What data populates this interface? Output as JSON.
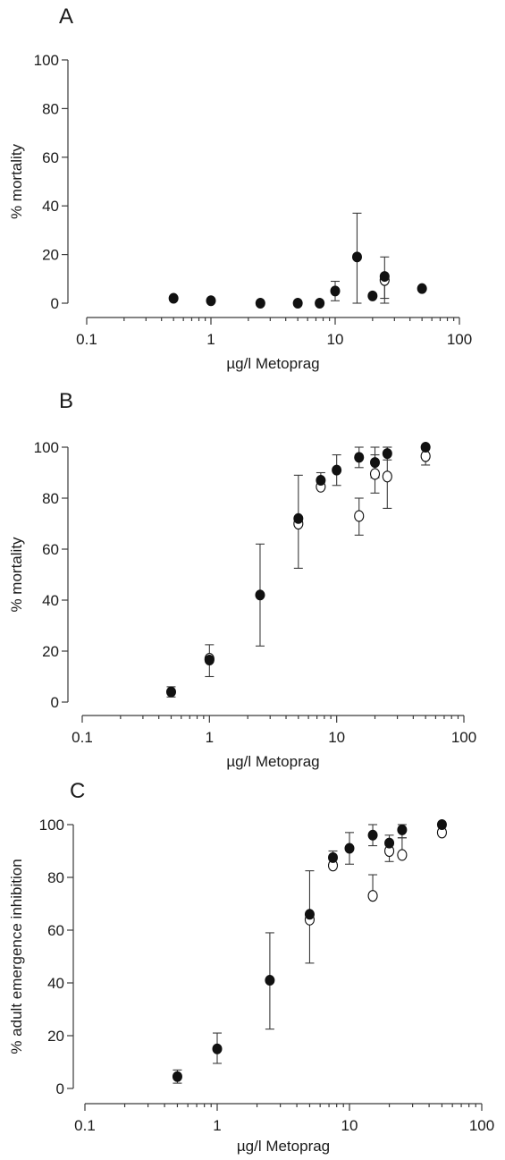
{
  "chart_data": [
    {
      "type": "scatter",
      "panel": "A",
      "xlabel": "µg/l Metoprag",
      "ylabel": "% mortality",
      "xscale": "log",
      "xlim": [
        0.1,
        100
      ],
      "ylim": [
        0,
        100
      ],
      "x_ticks": [
        0.1,
        1,
        10,
        100
      ],
      "x_tick_labels": [
        "0.1",
        "1",
        "10",
        "100"
      ],
      "y_ticks": [
        0,
        20,
        40,
        60,
        80,
        100
      ],
      "y_tick_labels": [
        "0",
        "20",
        "40",
        "60",
        "80",
        "100"
      ],
      "series": [
        {
          "marker": "filled",
          "points": [
            {
              "x": 0.5,
              "y": 2,
              "err": null
            },
            {
              "x": 1,
              "y": 1,
              "err": null
            },
            {
              "x": 2.5,
              "y": 0,
              "err": null
            },
            {
              "x": 5,
              "y": 0,
              "err": null
            },
            {
              "x": 7.5,
              "y": 0,
              "err": null
            },
            {
              "x": 10,
              "y": 5,
              "err": [
                1,
                9
              ]
            },
            {
              "x": 15,
              "y": 19,
              "err": [
                0,
                37
              ]
            },
            {
              "x": 20,
              "y": 3,
              "err": null
            },
            {
              "x": 25,
              "y": 11,
              "err": [
                2,
                19
              ]
            },
            {
              "x": 50,
              "y": 6,
              "err": null
            }
          ]
        },
        {
          "marker": "open",
          "points": [
            {
              "x": 25,
              "y": 9.5,
              "err": [
                0,
                9.5
              ]
            }
          ]
        }
      ]
    },
    {
      "type": "scatter",
      "panel": "B",
      "xlabel": "µg/l Metoprag",
      "ylabel": "% mortality",
      "xscale": "log",
      "xlim": [
        0.1,
        100
      ],
      "ylim": [
        0,
        100
      ],
      "x_ticks": [
        0.1,
        1,
        10,
        100
      ],
      "x_tick_labels": [
        "0.1",
        "1",
        "10",
        "100"
      ],
      "y_ticks": [
        0,
        20,
        40,
        60,
        80,
        100
      ],
      "y_tick_labels": [
        "0",
        "20",
        "40",
        "60",
        "80",
        "100"
      ],
      "series": [
        {
          "marker": "filled",
          "points": [
            {
              "x": 0.5,
              "y": 4,
              "err": [
                2,
                6
              ]
            },
            {
              "x": 1,
              "y": 16.5,
              "err": [
                10,
                22.5
              ]
            },
            {
              "x": 2.5,
              "y": 42,
              "err": [
                22,
                62
              ]
            },
            {
              "x": 5,
              "y": 72,
              "err": [
                52.5,
                89
              ]
            },
            {
              "x": 7.5,
              "y": 87,
              "err": [
                84,
                90
              ]
            },
            {
              "x": 10,
              "y": 91,
              "err": [
                85,
                97
              ]
            },
            {
              "x": 15,
              "y": 96,
              "err": [
                92,
                100
              ]
            },
            {
              "x": 20,
              "y": 94,
              "err": [
                88,
                100
              ]
            },
            {
              "x": 25,
              "y": 97.5,
              "err": [
                95,
                100
              ]
            },
            {
              "x": 50,
              "y": 100,
              "err": null
            }
          ]
        },
        {
          "marker": "open",
          "points": [
            {
              "x": 1,
              "y": 17,
              "err": null
            },
            {
              "x": 5,
              "y": 70,
              "err": null
            },
            {
              "x": 7.5,
              "y": 84.5,
              "err": null
            },
            {
              "x": 15,
              "y": 73,
              "err": [
                65.5,
                80
              ]
            },
            {
              "x": 20,
              "y": 89.5,
              "err": [
                82,
                97
              ]
            },
            {
              "x": 25,
              "y": 88.5,
              "err": [
                76,
                100
              ]
            },
            {
              "x": 50,
              "y": 96.5,
              "err": [
                93,
                100
              ]
            }
          ]
        }
      ]
    },
    {
      "type": "scatter",
      "panel": "C",
      "xlabel": "µg/l Metoprag",
      "ylabel": "% adult emergence inhibition",
      "xscale": "log",
      "xlim": [
        0.1,
        100
      ],
      "ylim": [
        0,
        100
      ],
      "x_ticks": [
        0.1,
        1,
        10,
        100
      ],
      "x_tick_labels": [
        "0.1",
        "1",
        "10",
        "100"
      ],
      "y_ticks": [
        0,
        20,
        40,
        60,
        80,
        100
      ],
      "y_tick_labels": [
        "0",
        "20",
        "40",
        "60",
        "80",
        "100"
      ],
      "series": [
        {
          "marker": "filled",
          "points": [
            {
              "x": 0.5,
              "y": 4.5,
              "err": [
                2,
                7
              ]
            },
            {
              "x": 1,
              "y": 15,
              "err": [
                9.5,
                21
              ]
            },
            {
              "x": 2.5,
              "y": 41,
              "err": [
                22.5,
                59
              ]
            },
            {
              "x": 5,
              "y": 66,
              "err": [
                47.5,
                82.5
              ]
            },
            {
              "x": 7.5,
              "y": 87.5,
              "err": [
                84,
                90
              ]
            },
            {
              "x": 10,
              "y": 91,
              "err": [
                85,
                97
              ]
            },
            {
              "x": 15,
              "y": 96,
              "err": [
                92,
                100
              ]
            },
            {
              "x": 20,
              "y": 93,
              "err": [
                86,
                96
              ]
            },
            {
              "x": 25,
              "y": 98,
              "err": [
                95,
                100
              ]
            },
            {
              "x": 50,
              "y": 100,
              "err": null
            }
          ]
        },
        {
          "marker": "open",
          "points": [
            {
              "x": 5,
              "y": 64,
              "err": null
            },
            {
              "x": 7.5,
              "y": 84.5,
              "err": null
            },
            {
              "x": 15,
              "y": 73,
              "err": [
                73,
                81
              ]
            },
            {
              "x": 20,
              "y": 90,
              "err": null
            },
            {
              "x": 25,
              "y": 88.5,
              "err": [
                88.5,
                95
              ]
            },
            {
              "x": 50,
              "y": 97,
              "err": null
            }
          ]
        }
      ]
    }
  ]
}
